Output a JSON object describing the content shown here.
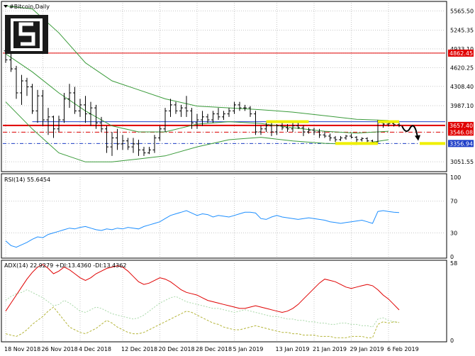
{
  "window": {
    "title": "#Bitcoin,Daily"
  },
  "logo": {
    "icon": "stacked-s-logo-icon"
  },
  "colors": {
    "background": "#ffffff",
    "grid": "#c8c8c8",
    "bars": "#000000",
    "bollinger": "#3a9b3a",
    "resistance": "#e00000",
    "blue_level": "#1f3fc8",
    "rsi": "#1e8fff",
    "adx": "#e00000",
    "plus_di": "#a8d8a8",
    "minus_di": "#b5b53a",
    "highlight": "#f0f000",
    "forecast_arrow": "#000000"
  },
  "chart_data": [
    {
      "type": "ohlc",
      "name": "price-panel",
      "yticks": [
        3051.55,
        3356.94,
        3546.08,
        3657.4,
        3987.1,
        4308.4,
        4620.25,
        4862.45,
        4933.1,
        5245.35,
        5565.5
      ],
      "ylim": [
        2900,
        5700
      ],
      "x_labels": [
        "18 Nov 2018",
        "26 Nov 2018",
        "4 Dec 2018",
        "12 Dec 2018",
        "20 Dec 2018",
        "28 Dec 2018",
        "5 Jan 2019",
        "13 Jan 2019",
        "21 Jan 2019",
        "29 Jan 2019",
        "6 Feb 2019"
      ],
      "levels": [
        {
          "name": "resistance-upper",
          "value": 4862.45,
          "label": "4862.45"
        },
        {
          "name": "resistance",
          "value": 3657.4,
          "label": "3657.40"
        },
        {
          "name": "dashdot",
          "value": 3546.08,
          "label": "3546.08"
        },
        {
          "name": "support",
          "value": 3356.94,
          "label": "3356.94"
        },
        {
          "name": "blue-top",
          "value": 3720
        }
      ],
      "ohlc": [
        [
          4900,
          5000,
          4700,
          4750
        ],
        [
          4750,
          4850,
          4550,
          4600
        ],
        [
          4600,
          4650,
          4100,
          4200
        ],
        [
          4200,
          4500,
          4000,
          4400
        ],
        [
          4400,
          4450,
          4150,
          4300
        ],
        [
          4300,
          4350,
          3850,
          3900
        ],
        [
          3900,
          4250,
          3700,
          4150
        ],
        [
          4150,
          4250,
          3650,
          3750
        ],
        [
          3750,
          3950,
          3500,
          3800
        ],
        [
          3800,
          3820,
          3450,
          3600
        ],
        [
          3600,
          3820,
          3550,
          3750
        ],
        [
          3750,
          4200,
          3700,
          4100
        ],
        [
          4100,
          4350,
          3950,
          4200
        ],
        [
          4200,
          4300,
          3850,
          3900
        ],
        [
          3900,
          4100,
          3800,
          4000
        ],
        [
          4000,
          4150,
          3700,
          3850
        ],
        [
          3850,
          4050,
          3650,
          3950
        ],
        [
          3950,
          4000,
          3600,
          3700
        ],
        [
          3700,
          3800,
          3550,
          3600
        ],
        [
          3600,
          3650,
          3200,
          3300
        ],
        [
          3300,
          3550,
          3150,
          3450
        ],
        [
          3450,
          3600,
          3250,
          3350
        ],
        [
          3350,
          3500,
          3250,
          3400
        ],
        [
          3400,
          3450,
          3250,
          3300
        ],
        [
          3300,
          3450,
          3200,
          3350
        ],
        [
          3350,
          3420,
          3150,
          3250
        ],
        [
          3250,
          3300,
          3150,
          3200
        ],
        [
          3200,
          3300,
          3180,
          3250
        ],
        [
          3250,
          3500,
          3200,
          3450
        ],
        [
          3450,
          3650,
          3400,
          3600
        ],
        [
          3600,
          3950,
          3550,
          3900
        ],
        [
          3900,
          4100,
          3800,
          4000
        ],
        [
          4000,
          4050,
          3850,
          3900
        ],
        [
          3900,
          4000,
          3800,
          3950
        ],
        [
          3950,
          4150,
          3800,
          3900
        ],
        [
          3900,
          3950,
          3600,
          3700
        ],
        [
          3700,
          3850,
          3600,
          3750
        ],
        [
          3750,
          3900,
          3650,
          3800
        ],
        [
          3800,
          3850,
          3700,
          3750
        ],
        [
          3750,
          3900,
          3700,
          3850
        ],
        [
          3850,
          3950,
          3750,
          3800
        ],
        [
          3800,
          3900,
          3750,
          3850
        ],
        [
          3850,
          3950,
          3800,
          3900
        ],
        [
          3900,
          4050,
          3850,
          4000
        ],
        [
          4000,
          4050,
          3900,
          3950
        ],
        [
          3950,
          4000,
          3900,
          3950
        ],
        [
          3950,
          3980,
          3800,
          3850
        ],
        [
          3850,
          3900,
          3500,
          3550
        ],
        [
          3550,
          3650,
          3500,
          3600
        ],
        [
          3600,
          3700,
          3550,
          3650
        ],
        [
          3650,
          3700,
          3480,
          3550
        ],
        [
          3550,
          3680,
          3500,
          3650
        ],
        [
          3650,
          3700,
          3580,
          3620
        ],
        [
          3620,
          3680,
          3550,
          3600
        ],
        [
          3600,
          3700,
          3550,
          3650
        ],
        [
          3650,
          3700,
          3600,
          3620
        ],
        [
          3620,
          3660,
          3480,
          3550
        ],
        [
          3550,
          3620,
          3520,
          3580
        ],
        [
          3580,
          3620,
          3500,
          3550
        ],
        [
          3550,
          3600,
          3450,
          3500
        ],
        [
          3500,
          3560,
          3450,
          3480
        ],
        [
          3480,
          3520,
          3400,
          3450
        ],
        [
          3450,
          3480,
          3380,
          3420
        ],
        [
          3420,
          3480,
          3400,
          3450
        ],
        [
          3450,
          3500,
          3420,
          3480
        ],
        [
          3480,
          3520,
          3440,
          3460
        ],
        [
          3460,
          3480,
          3380,
          3420
        ],
        [
          3420,
          3460,
          3390,
          3440
        ],
        [
          3440,
          3460,
          3380,
          3400
        ],
        [
          3400,
          3420,
          3350,
          3380
        ],
        [
          3380,
          3750,
          3370,
          3700
        ],
        [
          3700,
          3720,
          3620,
          3680
        ],
        [
          3680,
          3720,
          3640,
          3690
        ],
        [
          3690,
          3710,
          3640,
          3670
        ],
        [
          3670,
          3700,
          3630,
          3660
        ]
      ],
      "bollinger_upper": [
        [
          0,
          5650
        ],
        [
          5,
          5600
        ],
        [
          10,
          5200
        ],
        [
          15,
          4700
        ],
        [
          20,
          4400
        ],
        [
          25,
          4250
        ],
        [
          30,
          4100
        ],
        [
          36,
          3980
        ],
        [
          42,
          3950
        ],
        [
          48,
          3920
        ],
        [
          54,
          3880
        ],
        [
          60,
          3820
        ],
        [
          66,
          3760
        ],
        [
          72,
          3740
        ]
      ],
      "bollinger_middle": [
        [
          0,
          4850
        ],
        [
          5,
          4550
        ],
        [
          10,
          4200
        ],
        [
          15,
          3900
        ],
        [
          20,
          3650
        ],
        [
          25,
          3550
        ],
        [
          30,
          3550
        ],
        [
          36,
          3680
        ],
        [
          42,
          3720
        ],
        [
          48,
          3690
        ],
        [
          54,
          3620
        ],
        [
          60,
          3560
        ],
        [
          66,
          3530
        ],
        [
          72,
          3560
        ]
      ],
      "bollinger_lower": [
        [
          0,
          4050
        ],
        [
          5,
          3600
        ],
        [
          10,
          3200
        ],
        [
          15,
          3050
        ],
        [
          20,
          3050
        ],
        [
          25,
          3100
        ],
        [
          30,
          3150
        ],
        [
          36,
          3300
        ],
        [
          42,
          3420
        ],
        [
          48,
          3460
        ],
        [
          54,
          3400
        ],
        [
          60,
          3360
        ],
        [
          66,
          3340
        ],
        [
          72,
          3420
        ]
      ]
    },
    {
      "type": "line",
      "name": "rsi-panel",
      "label": "RSI(14) 55.6454",
      "ylim": [
        0,
        100
      ],
      "yticks": [
        0,
        30,
        70,
        100
      ],
      "levels": [
        30,
        70
      ],
      "values": [
        20,
        14,
        12,
        15,
        18,
        22,
        25,
        24,
        28,
        30,
        32,
        34,
        36,
        35,
        37,
        38,
        36,
        34,
        33,
        35,
        34,
        36,
        35,
        37,
        36,
        35,
        38,
        40,
        42,
        44,
        48,
        52,
        54,
        56,
        58,
        55,
        52,
        54,
        53,
        50,
        52,
        51,
        50,
        52,
        54,
        56,
        56,
        55,
        48,
        47,
        50,
        52,
        50,
        49,
        48,
        47,
        48,
        49,
        48,
        47,
        46,
        44,
        43,
        42,
        43,
        44,
        45,
        46,
        44,
        42,
        57,
        58,
        57,
        56,
        55.6
      ]
    },
    {
      "type": "line",
      "name": "adx-panel",
      "label": "ADX(14) 22.9279 +DI:13.4360 -DI:13.4362",
      "ylim": [
        0,
        58
      ],
      "yticks": [
        0,
        58
      ],
      "series": [
        {
          "name": "ADX",
          "values": [
            22,
            28,
            34,
            40,
            46,
            51,
            55,
            57,
            54,
            50,
            52,
            55,
            53,
            50,
            47,
            45,
            47,
            50,
            52,
            54,
            55,
            56,
            55,
            52,
            48,
            44,
            42,
            43,
            45,
            47,
            46,
            44,
            41,
            38,
            36,
            35,
            34,
            32,
            30,
            29,
            28,
            27,
            26,
            25,
            24,
            24,
            25,
            26,
            25,
            24,
            23,
            22,
            21,
            22,
            24,
            27,
            31,
            35,
            39,
            43,
            46,
            45,
            44,
            42,
            40,
            39,
            40,
            41,
            42,
            41,
            38,
            34,
            31,
            27,
            22.9
          ]
        },
        {
          "name": "+DI",
          "values": [
            30,
            33,
            35,
            36,
            38,
            36,
            34,
            32,
            29,
            26,
            27,
            30,
            28,
            25,
            22,
            21,
            23,
            25,
            24,
            22,
            20,
            19,
            18,
            17,
            16,
            17,
            19,
            22,
            25,
            28,
            30,
            32,
            33,
            31,
            29,
            28,
            27,
            26,
            25,
            24,
            24,
            23,
            22,
            21,
            22,
            23,
            22,
            21,
            20,
            19,
            18,
            18,
            17,
            16,
            16,
            15,
            15,
            14,
            14,
            13,
            13,
            12,
            12,
            13,
            13,
            12,
            12,
            11,
            11,
            10,
            16,
            17,
            15,
            14,
            13.4
          ]
        },
        {
          "name": "-DI",
          "values": [
            5,
            4,
            3,
            5,
            8,
            12,
            15,
            18,
            22,
            25,
            20,
            15,
            10,
            8,
            6,
            5,
            7,
            9,
            12,
            15,
            13,
            10,
            8,
            6,
            5,
            5,
            6,
            8,
            10,
            12,
            14,
            16,
            18,
            20,
            22,
            21,
            19,
            17,
            15,
            13,
            12,
            10,
            9,
            8,
            8,
            9,
            10,
            11,
            10,
            9,
            8,
            7,
            6,
            6,
            5,
            5,
            4,
            4,
            4,
            3,
            3,
            3,
            2,
            2,
            2,
            3,
            3,
            3,
            2,
            2,
            12,
            14,
            13,
            14,
            13.4
          ]
        }
      ]
    }
  ]
}
